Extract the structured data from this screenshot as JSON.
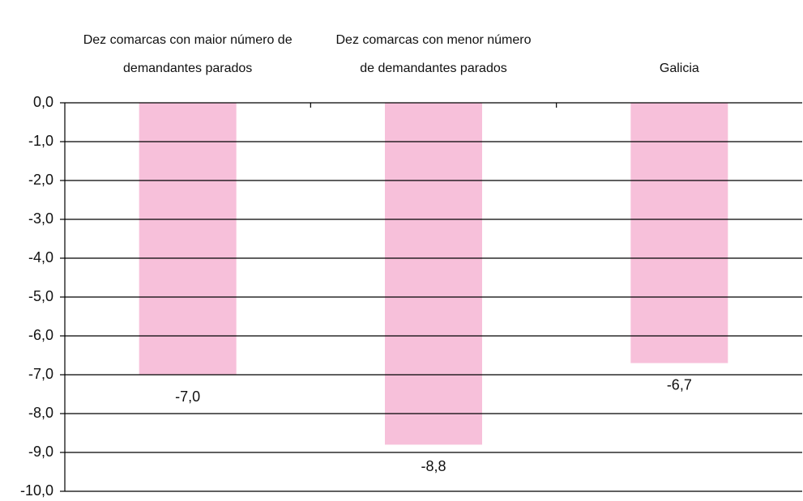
{
  "chart_data": {
    "type": "bar",
    "categories": [
      "Dez comarcas con maior número de demandantes parados",
      "Dez comarcas con menor número de demandantes parados",
      "Galicia"
    ],
    "values": [
      -7.0,
      -8.8,
      -6.7
    ],
    "value_labels": [
      "-7,0",
      "-8,8",
      "-6,7"
    ],
    "color": "#f7c0da",
    "ylim": [
      -10,
      0
    ],
    "yticks": [
      {
        "value": 0,
        "label": "0,0"
      },
      {
        "value": -1,
        "label": "-1,0"
      },
      {
        "value": -2,
        "label": "-2,0"
      },
      {
        "value": -3,
        "label": "-3,0"
      },
      {
        "value": -4,
        "label": "-4,0"
      },
      {
        "value": -5,
        "label": "-5,0"
      },
      {
        "value": -6,
        "label": "-6,0"
      },
      {
        "value": -7,
        "label": "-7,0"
      },
      {
        "value": -8,
        "label": "-8,0"
      },
      {
        "value": -9,
        "label": "-9,0"
      },
      {
        "value": -10,
        "label": "-10,0"
      }
    ],
    "grid": true
  }
}
